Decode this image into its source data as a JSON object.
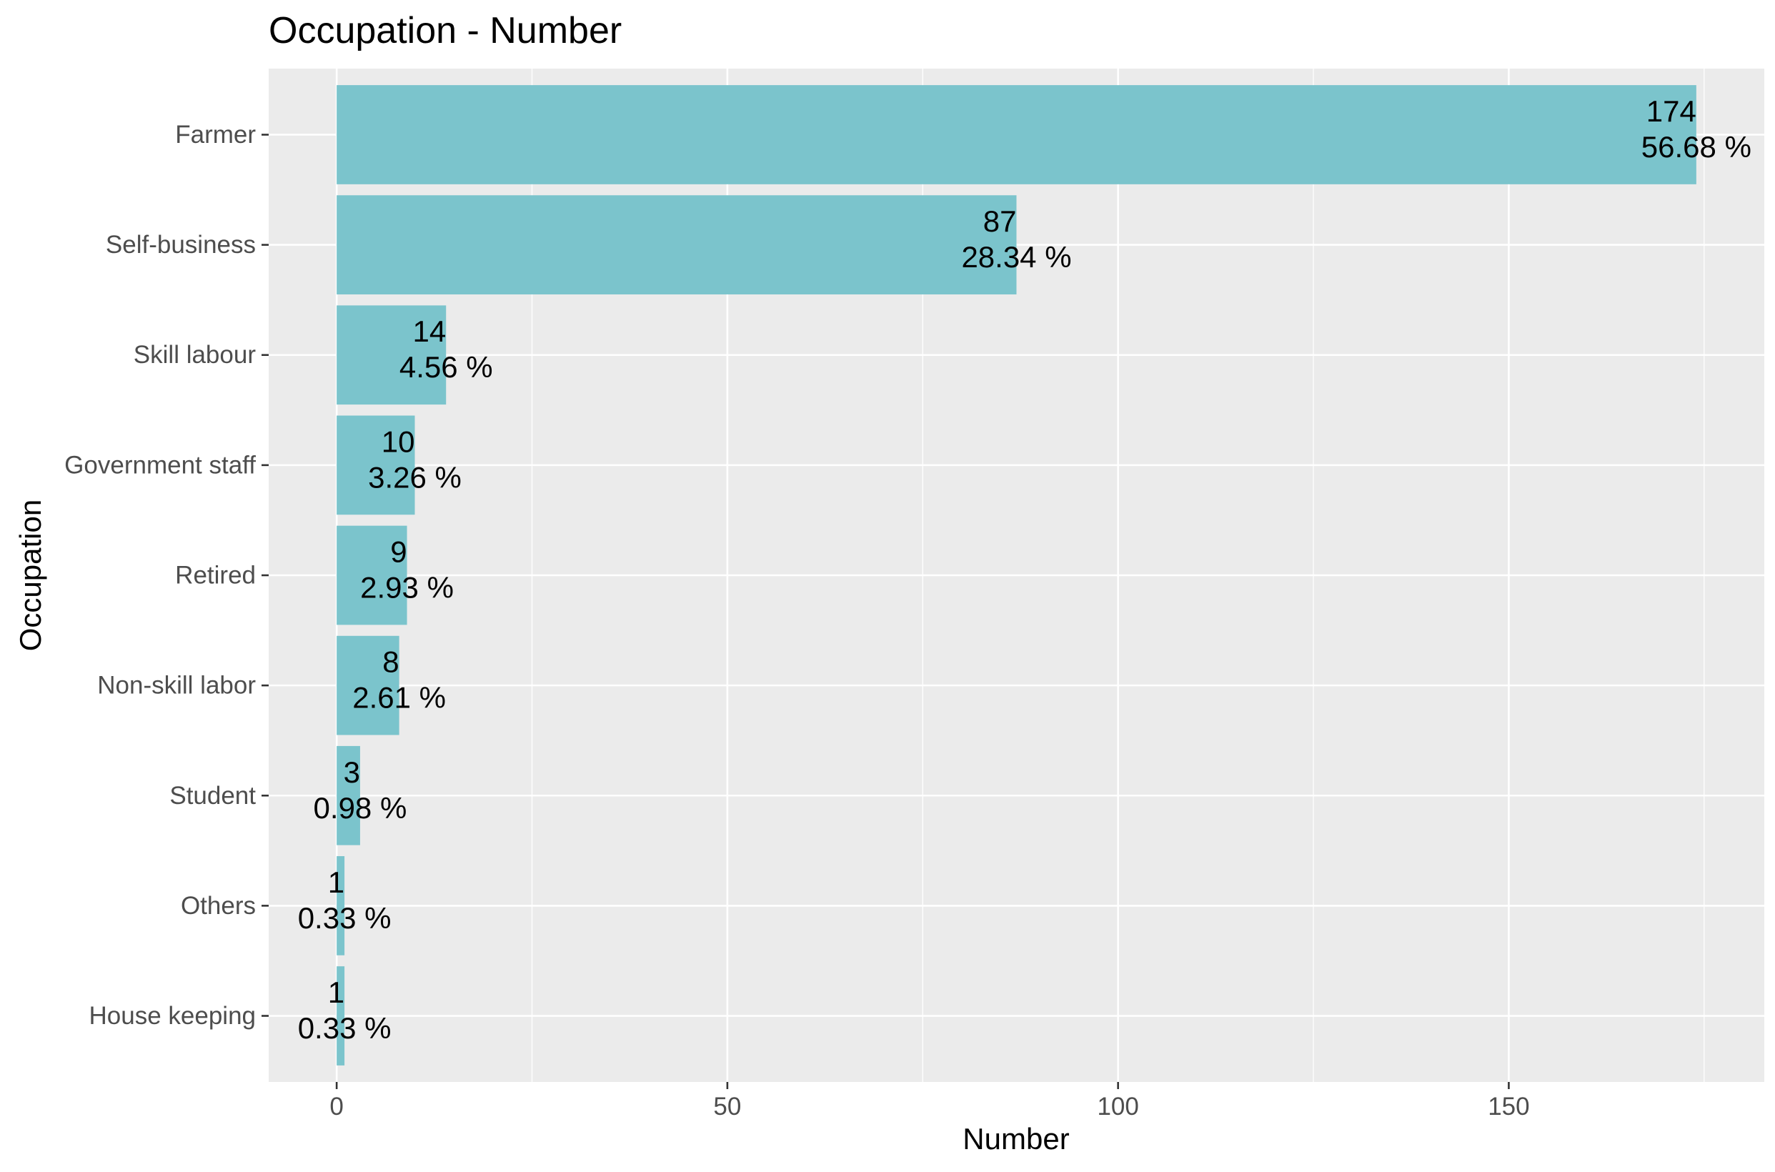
{
  "chart_data": {
    "type": "bar",
    "orientation": "horizontal",
    "title": "Occupation - Number",
    "xlabel": "Number",
    "ylabel": "Occupation",
    "categories": [
      "Farmer",
      "Self-business",
      "Skill labour",
      "Government staff",
      "Retired",
      "Non-skill labor",
      "Student",
      "Others",
      "House keeping"
    ],
    "values": [
      174,
      87,
      14,
      10,
      9,
      8,
      3,
      1,
      1
    ],
    "percent_labels": [
      "56.68 %",
      "28.34 %",
      "4.56 %",
      "3.26 %",
      "2.93 %",
      "2.61 %",
      "0.98 %",
      "0.33 %",
      "0.33 %"
    ],
    "xlim": [
      -8.7,
      182.7
    ],
    "x_ticks": [
      0,
      50,
      100,
      150
    ],
    "grid": true,
    "legend": "none",
    "colors": {
      "bar": "#7BC4CC",
      "panel": "#EBEBEB",
      "grid": "#FFFFFF",
      "text": "#000000",
      "tick_text": "#4D4D4D"
    }
  }
}
